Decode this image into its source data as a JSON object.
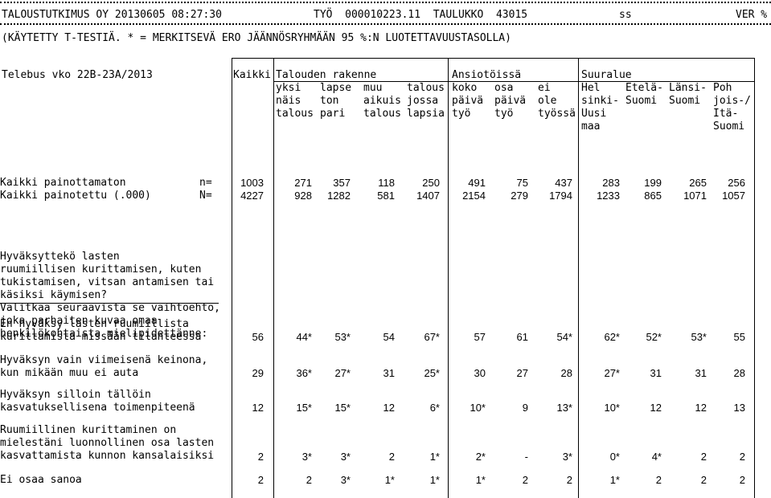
{
  "top_line": {
    "left": "TALOUSTUTKIMUS OY 20130605 08:27:30",
    "middle": "TYÖ  000010223.11  TAULUKKO  43015",
    "ss": "ss",
    "right": "VER %"
  },
  "subtitle": "(KÄYTETTY T-TESTIÄ. * = MERKITSEVÄ ERO JÄÄNNÖSRYHMÄÄN 95 %:N LUOTETTAVUUSTASOLLA)",
  "survey": "Telebus vko 22B-23A/2013",
  "col_total": "Kaikki",
  "groups": {
    "household": "Talouden rakenne",
    "work": "Ansiotöissä",
    "region": "Suuralue"
  },
  "subheaders": [
    [
      "yksi",
      "näis",
      "talous"
    ],
    [
      "lapse",
      "ton",
      "pari"
    ],
    [
      "muu",
      "aikuis",
      "talous"
    ],
    [
      "talous",
      "jossa",
      "lapsia"
    ],
    [
      "koko",
      "päivä",
      "työ"
    ],
    [
      "osa",
      "päivä",
      "työ"
    ],
    [
      "ei",
      "ole",
      "työssä"
    ],
    [
      "Hel",
      "sinki-",
      "Uusi",
      "maa"
    ],
    [
      "Etelä-",
      "Suomi"
    ],
    [
      "Länsi-",
      "Suomi"
    ],
    [
      "Poh",
      "jois-/",
      "Itä-",
      "Suomi"
    ]
  ],
  "counts": [
    {
      "label": "Kaikki painottamaton",
      "sym": "n=",
      "values": [
        "1003",
        "271",
        "357",
        "118",
        "250",
        "491",
        "75",
        "437",
        "283",
        "199",
        "265",
        "256"
      ]
    },
    {
      "label": "Kaikki painotettu (.000)",
      "sym": "N=",
      "values": [
        "4227",
        "928",
        "1282",
        "581",
        "1407",
        "2154",
        "279",
        "1794",
        "1233",
        "865",
        "1071",
        "1057"
      ]
    }
  ],
  "question": [
    "Hyväksyttekö lasten",
    "ruumiillisen kurittamisen, kuten",
    "tukistamisen, vitsan antamisen tai",
    "käsiksi käymisen?",
    "Valitkaa seuraavista se vaihtoehto,",
    "joka parhaiten kuvaa omaa",
    "henkilökohtaista mielipidettänne:"
  ],
  "rows": [
    {
      "label": [
        "En hyväksy lasten ruumiillista",
        "kurittamista missään tilanteessa"
      ],
      "values": [
        "56",
        "44*",
        "53*",
        "54",
        "67*",
        "57",
        "61",
        "54*",
        "62*",
        "52*",
        "53*",
        "55"
      ]
    },
    {
      "label": [
        "Hyväksyn vain viimeisenä keinona,",
        "kun mikään muu ei auta"
      ],
      "values": [
        "29",
        "36*",
        "27*",
        "31",
        "25*",
        "30",
        "27",
        "28",
        "27*",
        "31",
        "31",
        "28"
      ]
    },
    {
      "label": [
        "Hyväksyn silloin tällöin",
        "kasvatuksellisena toimenpiteenä"
      ],
      "values": [
        "12",
        "15*",
        "15*",
        "12",
        "6*",
        "10*",
        "9",
        "13*",
        "10*",
        "12",
        "12",
        "13"
      ]
    },
    {
      "label": [
        "Ruumiillinen kurittaminen on",
        "mielestäni luonnollinen osa lasten",
        "kasvattamista kunnon kansalaisiksi"
      ],
      "values": [
        "2",
        "3*",
        "3*",
        "2",
        "1*",
        "2*",
        "-",
        "3*",
        "0*",
        "4*",
        "2",
        "2"
      ]
    },
    {
      "label": [
        "Ei osaa sanoa"
      ],
      "values": [
        "2",
        "2",
        "3*",
        "1*",
        "1*",
        "1*",
        "2",
        "2",
        "1*",
        "2",
        "2",
        "2"
      ]
    }
  ]
}
